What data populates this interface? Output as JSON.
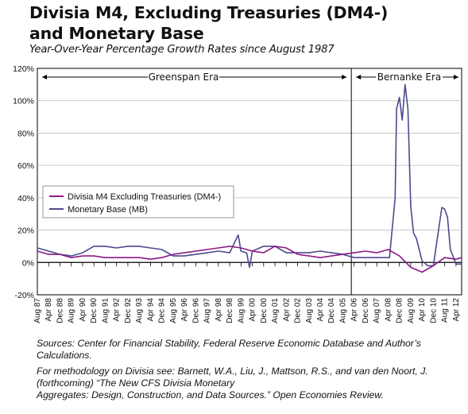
{
  "title_line1": "Divisia M4, Excluding Treasuries (DM4-)",
  "title_line2": "and Monetary Base",
  "subtitle": "Year-Over-Year Percentage Growth Rates since August 1987",
  "sources": "Sources: Center for Financial Stability, Federal Reserve Economic Database and Author’s Calculations.",
  "methodology_line1": "For methodology on Divisia see: Barnett, W.A., Liu, J., Mattson, R.S., and van den Noort, J.",
  "methodology_line2": "(forthcoming) “The New CFS Divisia Monetary",
  "methodology_line3": "Aggregates: Design, Construction, and Data Sources.” Open Economies Review.",
  "colors": {
    "dm4": "#8b1a86",
    "mb": "#4b4a8f",
    "axis": "#000000",
    "grid": "#bdbdbd"
  },
  "chart_data": {
    "type": "line",
    "ylim": [
      -20,
      120
    ],
    "yticks": [
      -20,
      0,
      20,
      40,
      60,
      80,
      100,
      120
    ],
    "ytick_labels": [
      "-20%",
      "0%",
      "20%",
      "40%",
      "60%",
      "80%",
      "100%",
      "120%"
    ],
    "xtick_labels": [
      "Aug 87",
      "Apr 88",
      "Dec 88",
      "Aug 89",
      "Apr 90",
      "Dec 90",
      "Aug 91",
      "Apr 92",
      "Dec 92",
      "Aug 93",
      "Apr 94",
      "Dec 94",
      "Aug 95",
      "Apr 96",
      "Dec 96",
      "Aug 97",
      "Apr 98",
      "Dec 98",
      "Aug 99",
      "Apr 00",
      "Dec 00",
      "Aug 01",
      "Apr 02",
      "Dec 02",
      "Aug 03",
      "Apr 04",
      "Dec 04",
      "Aug 05",
      "Apr 06",
      "Dec 06",
      "Aug 07",
      "Apr 08",
      "Dec 08",
      "Aug 09",
      "Apr 10",
      "Dec 10",
      "Aug 11",
      "Apr 12"
    ],
    "era_divider": "Feb 06",
    "eras": [
      {
        "label": "Greenspan Era",
        "from": "Aug 87",
        "to": "Jan 06"
      },
      {
        "label": "Bernanke Era",
        "from": "Feb 06",
        "to": "Aug 12"
      }
    ],
    "legend_position": "center-left",
    "series": [
      {
        "name": "Divisia M4 Excluding Treasuries (DM4-)",
        "color": "#8b1a86",
        "x": [
          "Aug 87",
          "Apr 88",
          "Dec 88",
          "Aug 89",
          "Apr 90",
          "Dec 90",
          "Aug 91",
          "Apr 92",
          "Dec 92",
          "Aug 93",
          "Apr 94",
          "Dec 94",
          "Aug 95",
          "Apr 96",
          "Dec 96",
          "Aug 97",
          "Apr 98",
          "Dec 98",
          "Aug 99",
          "Apr 00",
          "Dec 00",
          "Aug 01",
          "Apr 02",
          "Dec 02",
          "Aug 03",
          "Apr 04",
          "Dec 04",
          "Aug 05",
          "Apr 06",
          "Dec 06",
          "Aug 07",
          "Apr 08",
          "Dec 08",
          "Aug 09",
          "Apr 10",
          "Dec 10",
          "Aug 11",
          "Apr 12",
          "Aug 12"
        ],
        "values": [
          7,
          5,
          5,
          3,
          4,
          4,
          3,
          3,
          3,
          3,
          2,
          3,
          5,
          6,
          7,
          8,
          9,
          10,
          9,
          7,
          6,
          10,
          9,
          5,
          4,
          3,
          4,
          5,
          6,
          7,
          6,
          8,
          4,
          -3,
          -6,
          -2,
          3,
          2,
          3
        ]
      },
      {
        "name": "Monetary Base (MB)",
        "color": "#4b4a8f",
        "x": [
          "Aug 87",
          "Apr 88",
          "Dec 88",
          "Aug 89",
          "Apr 90",
          "Dec 90",
          "Aug 91",
          "Apr 92",
          "Dec 92",
          "Aug 93",
          "Apr 94",
          "Dec 94",
          "Aug 95",
          "Apr 96",
          "Dec 96",
          "Aug 97",
          "Apr 98",
          "Dec 98",
          "Jun 99",
          "Aug 99",
          "Dec 99",
          "Feb 00",
          "Apr 00",
          "Dec 00",
          "Aug 01",
          "Apr 02",
          "Dec 02",
          "Aug 03",
          "Apr 04",
          "Dec 04",
          "Aug 05",
          "Apr 06",
          "Dec 06",
          "Aug 07",
          "May 08",
          "Sep 08",
          "Oct 08",
          "Dec 08",
          "Feb 09",
          "Apr 09",
          "Jun 09",
          "Aug 09",
          "Oct 09",
          "Dec 09",
          "Feb 10",
          "Apr 10",
          "Aug 10",
          "Dec 10",
          "Apr 11",
          "Jun 11",
          "Aug 11",
          "Oct 11",
          "Dec 11",
          "Apr 12",
          "Aug 12"
        ],
        "values": [
          9,
          7,
          5,
          4,
          6,
          10,
          10,
          9,
          10,
          10,
          9,
          8,
          4,
          4,
          5,
          6,
          7,
          6,
          17,
          7,
          6,
          -3,
          7,
          10,
          10,
          6,
          6,
          6,
          7,
          6,
          5,
          3,
          3,
          3,
          3,
          40,
          95,
          102,
          88,
          110,
          95,
          35,
          18,
          15,
          8,
          1,
          -2,
          -2,
          22,
          34,
          33,
          28,
          8,
          -1,
          -1
        ]
      }
    ]
  }
}
